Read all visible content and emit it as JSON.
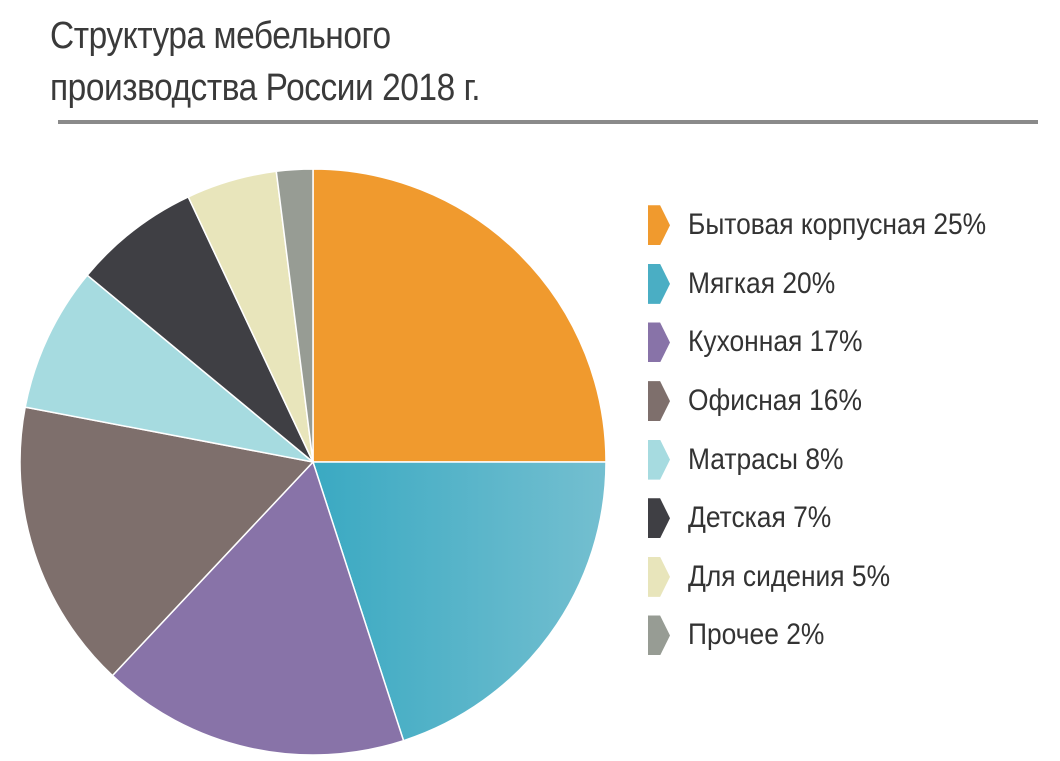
{
  "chart_data": {
    "type": "pie",
    "title_lines": [
      "Структура мебельного",
      "производства России 2018 г."
    ],
    "legend_position": "right",
    "slices": [
      {
        "label": "Бытовая корпусная 25%",
        "value": 25,
        "color": "#f09a2e"
      },
      {
        "label": "Мягкая 20%",
        "value": 20,
        "color": "#4aaec4"
      },
      {
        "label": "Кухонная 17%",
        "value": 17,
        "color": "#8873a8"
      },
      {
        "label": "Офисная 16%",
        "value": 16,
        "color": "#7e6f6c"
      },
      {
        "label": "Матрасы 8%",
        "value": 8,
        "color": "#a6dbe0"
      },
      {
        "label": "Детская 7%",
        "value": 7,
        "color": "#3f3f44"
      },
      {
        "label": "Для сидения 5%",
        "value": 5,
        "color": "#e8e5bb"
      },
      {
        "label": "Прочее 2%",
        "value": 2,
        "color": "#979c94"
      }
    ]
  }
}
